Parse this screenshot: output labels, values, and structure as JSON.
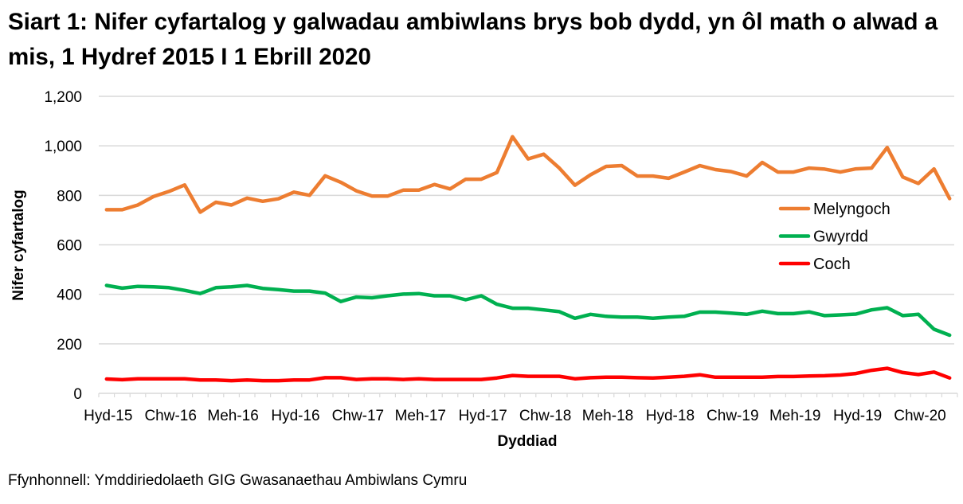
{
  "chart_data": {
    "type": "line",
    "title": "Siart 1: Nifer cyfartalog y galwadau ambiwlans brys bob dydd, yn ôl math o alwad a mis, 1 Hydref 2015 I 1 Ebrill 2020",
    "xlabel": "Dyddiad",
    "ylabel": "Nifer cyfartalog",
    "ylim": [
      0,
      1200
    ],
    "yticks": [
      "0",
      "200",
      "400",
      "600",
      "800",
      "1,000",
      "1,200"
    ],
    "ytick_values": [
      0,
      200,
      400,
      600,
      800,
      1000,
      1200
    ],
    "xtick_labels": [
      "Hyd-15",
      "Chw-16",
      "Meh-16",
      "Hyd-16",
      "Chw-17",
      "Meh-17",
      "Hyd-17",
      "Chw-18",
      "Meh-18",
      "Hyd-18",
      "Chw-19",
      "Meh-19",
      "Hyd-19",
      "Chw-20"
    ],
    "x": [
      "Hyd-15",
      "Tach-15",
      "Rhag-15",
      "Ion-16",
      "Chw-16",
      "Maw-16",
      "Ebr-16",
      "Mai-16",
      "Meh-16",
      "Gor-16",
      "Awst-16",
      "Medi-16",
      "Hyd-16",
      "Tach-16",
      "Rhag-16",
      "Ion-17",
      "Chw-17",
      "Maw-17",
      "Ebr-17",
      "Mai-17",
      "Meh-17",
      "Gor-17",
      "Awst-17",
      "Medi-17",
      "Hyd-17",
      "Tach-17",
      "Rhag-17",
      "Ion-18",
      "Chw-18",
      "Maw-18",
      "Ebr-18",
      "Mai-18",
      "Meh-18",
      "Gor-18",
      "Awst-18",
      "Medi-18",
      "Hyd-18",
      "Tach-18",
      "Rhag-18",
      "Ion-19",
      "Chw-19",
      "Maw-19",
      "Ebr-19",
      "Mai-19",
      "Meh-19",
      "Gor-19",
      "Awst-19",
      "Medi-19",
      "Hyd-19",
      "Tach-19",
      "Rhag-19",
      "Ion-20",
      "Chw-20",
      "Maw-20",
      "Ebr-20"
    ],
    "grid": true,
    "legend_position": "right",
    "series": [
      {
        "name": "Melyngoch",
        "color": "#ED7D31",
        "values": [
          742,
          742,
          761,
          795,
          816,
          842,
          732,
          772,
          761,
          789,
          776,
          786,
          813,
          800,
          879,
          853,
          818,
          797,
          797,
          821,
          821,
          844,
          826,
          865,
          865,
          892,
          1037,
          947,
          966,
          910,
          841,
          883,
          917,
          920,
          878,
          878,
          869,
          894,
          920,
          904,
          896,
          878,
          933,
          894,
          894,
          910,
          906,
          894,
          907,
          910,
          993,
          874,
          848,
          907,
          787
        ]
      },
      {
        "name": "Gwyrdd",
        "color": "#00B050",
        "values": [
          436,
          425,
          432,
          430,
          427,
          416,
          403,
          427,
          430,
          436,
          424,
          419,
          413,
          413,
          405,
          371,
          389,
          386,
          394,
          401,
          403,
          394,
          394,
          378,
          394,
          360,
          344,
          344,
          337,
          330,
          303,
          319,
          311,
          308,
          308,
          303,
          308,
          311,
          328,
          328,
          324,
          319,
          332,
          322,
          322,
          329,
          314,
          317,
          320,
          337,
          346,
          314,
          319,
          259,
          235
        ]
      },
      {
        "name": "Coch",
        "color": "#FF0000",
        "values": [
          58,
          55,
          59,
          59,
          59,
          59,
          54,
          54,
          51,
          54,
          51,
          51,
          54,
          54,
          63,
          63,
          56,
          59,
          59,
          56,
          59,
          56,
          56,
          56,
          56,
          62,
          72,
          69,
          69,
          69,
          59,
          63,
          65,
          65,
          63,
          62,
          65,
          69,
          75,
          65,
          65,
          65,
          65,
          68,
          68,
          70,
          71,
          74,
          80,
          93,
          101,
          84,
          76,
          86,
          62
        ]
      }
    ]
  },
  "source": "Ffynhonnell: Ymddiriedolaeth GIG Gwasanaethau Ambiwlans Cymru"
}
